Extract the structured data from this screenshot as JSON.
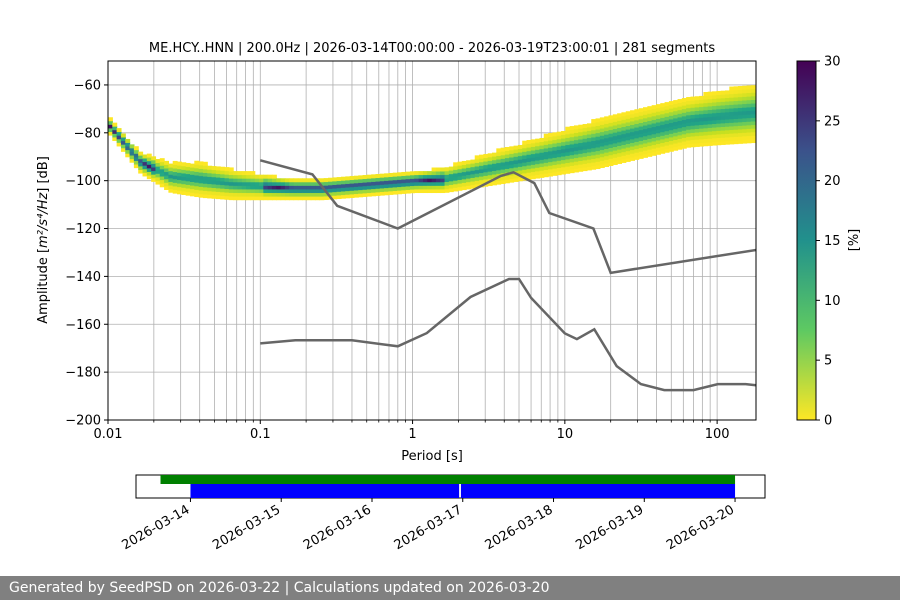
{
  "chart_data": {
    "type": "heatmap",
    "title": "ME.HCY..HNN | 200.0Hz | 2026-03-14T00:00:00 - 2026-03-19T23:00:01 | 281 segments",
    "xlabel": "Period [s]",
    "ylabel_prefix": "Amplitude [",
    "ylabel_math": "m²/s⁴/Hz",
    "ylabel_suffix": "] [dB]",
    "xscale": "log",
    "xlim": [
      0.01,
      180
    ],
    "ylim": [
      -200,
      -50
    ],
    "grid": true,
    "x_ticks": [
      {
        "value": 0.01,
        "label": "0.01"
      },
      {
        "value": 0.1,
        "label": "0.1"
      },
      {
        "value": 1,
        "label": "1"
      },
      {
        "value": 10,
        "label": "10"
      },
      {
        "value": 100,
        "label": "100"
      }
    ],
    "y_ticks": [
      {
        "value": -60,
        "label": "−60"
      },
      {
        "value": -80,
        "label": "−80"
      },
      {
        "value": -100,
        "label": "−100"
      },
      {
        "value": -120,
        "label": "−120"
      },
      {
        "value": -140,
        "label": "−140"
      },
      {
        "value": -160,
        "label": "−160"
      },
      {
        "value": -180,
        "label": "−180"
      },
      {
        "value": -200,
        "label": "−200"
      }
    ],
    "colorbar": {
      "label": "[%]",
      "range": [
        0,
        30
      ],
      "ticks": [
        {
          "value": 0,
          "label": "0"
        },
        {
          "value": 5,
          "label": "5"
        },
        {
          "value": 10,
          "label": "10"
        },
        {
          "value": 15,
          "label": "15"
        },
        {
          "value": 20,
          "label": "20"
        },
        {
          "value": 25,
          "label": "25"
        },
        {
          "value": 30,
          "label": "30"
        }
      ]
    },
    "density_profile": {
      "description": "Probability-density band: center dB per period (log10 of period), band width in dB",
      "log_period": [
        -2.0,
        -1.8,
        -1.6,
        -1.4,
        -1.2,
        -1.0,
        -0.8,
        -0.6,
        -0.4,
        -0.2,
        0.0,
        0.2,
        0.4,
        0.6,
        0.8,
        1.0,
        1.2,
        1.4,
        1.6,
        1.8,
        2.0,
        2.25
      ],
      "center_db": [
        -78,
        -93,
        -99,
        -100,
        -102,
        -103,
        -104,
        -104,
        -103,
        -102,
        -101,
        -100,
        -97,
        -94,
        -91,
        -88,
        -85,
        -82,
        -79,
        -76,
        -74,
        -72
      ],
      "half_width_db": [
        3,
        4,
        6,
        7,
        6,
        5,
        4,
        4,
        4,
        4,
        4,
        5,
        6,
        7,
        8,
        9,
        10,
        10,
        10,
        10,
        11,
        12
      ]
    },
    "noise_models": [
      {
        "name": "NHNM",
        "period": [
          0.1,
          0.22,
          0.32,
          0.8,
          3.8,
          4.6,
          6.3,
          7.9,
          15.4,
          20,
          354.8
        ],
        "db": [
          -91.5,
          -97.4,
          -110.5,
          -120,
          -98,
          -96.5,
          -101,
          -113.5,
          -120,
          -138.5,
          -126
        ]
      },
      {
        "name": "NLNM",
        "period": [
          0.1,
          0.17,
          0.4,
          0.8,
          1.24,
          2.4,
          4.3,
          5.0,
          6.0,
          10,
          12,
          15.6,
          21.9,
          31.6,
          45,
          70,
          101,
          154,
          180
        ],
        "db": [
          -168,
          -166.7,
          -166.7,
          -169.2,
          -163.7,
          -148.6,
          -141.1,
          -141.1,
          -149,
          -163.8,
          -166.2,
          -162.1,
          -177.5,
          -185,
          -187.5,
          -187.5,
          -185,
          -185,
          -185.5
        ]
      }
    ],
    "coverage": {
      "ticks": [
        "2026-03-14",
        "2026-03-15",
        "2026-03-16",
        "2026-03-17",
        "2026-03-18",
        "2026-03-19",
        "2026-03-20"
      ],
      "range_days": [
        -0.6,
        6.33
      ],
      "green_bars": [
        {
          "start": -0.33,
          "end": 6.0
        }
      ],
      "blue_bars": [
        {
          "start": 0.0,
          "end": 2.96
        },
        {
          "start": 2.98,
          "end": 6.0
        }
      ],
      "gaps": [
        2.97
      ]
    }
  },
  "footer": {
    "text": "Generated by SeedPSD on 2026-03-22 | Calculations updated on 2026-03-20"
  }
}
